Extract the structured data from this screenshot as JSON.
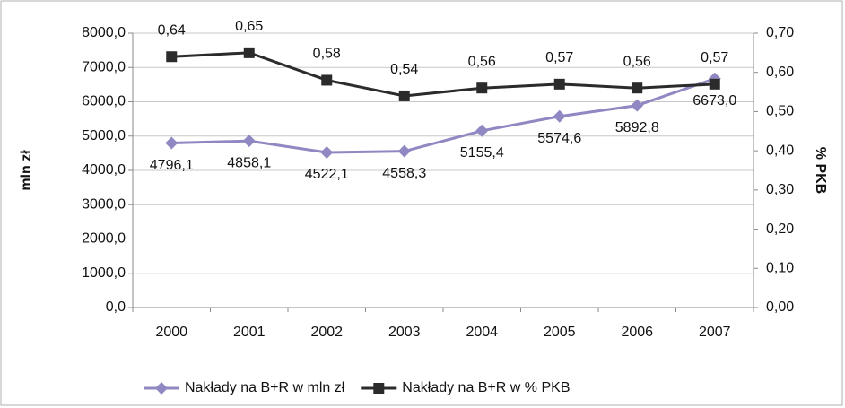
{
  "chart_data": {
    "type": "line",
    "categories": [
      "2000",
      "2001",
      "2002",
      "2003",
      "2004",
      "2005",
      "2006",
      "2007"
    ],
    "y_label": "mln zł",
    "y2_label": "% PKB",
    "ylim": [
      0,
      8000
    ],
    "yticks": [
      {
        "value": 0,
        "label": "0,0"
      },
      {
        "value": 1000,
        "label": "1000,0"
      },
      {
        "value": 2000,
        "label": "2000,0"
      },
      {
        "value": 3000,
        "label": "3000,0"
      },
      {
        "value": 4000,
        "label": "4000,0"
      },
      {
        "value": 5000,
        "label": "5000,0"
      },
      {
        "value": 6000,
        "label": "6000,0"
      },
      {
        "value": 7000,
        "label": "7000,0"
      },
      {
        "value": 8000,
        "label": "8000,0"
      }
    ],
    "y2lim": [
      0,
      0.7
    ],
    "y2ticks": [
      {
        "value": 0,
        "label": "0,00"
      },
      {
        "value": 0.1,
        "label": "0,10"
      },
      {
        "value": 0.2,
        "label": "0,20"
      },
      {
        "value": 0.3,
        "label": "0,30"
      },
      {
        "value": 0.4,
        "label": "0,40"
      },
      {
        "value": 0.5,
        "label": "0,50"
      },
      {
        "value": 0.6,
        "label": "0,60"
      },
      {
        "value": 0.7,
        "label": "0,70"
      }
    ],
    "grid": true,
    "legend": "bottom",
    "series": [
      {
        "name": "Nakłady na B+R w mln zł",
        "color": "#8f88c2",
        "marker": "diamond",
        "axis": "y",
        "values": [
          4796.1,
          4858.1,
          4522.1,
          4558.3,
          5155.4,
          5574.6,
          5892.8,
          6673.0
        ],
        "value_labels": [
          "4796,1",
          "4858,1",
          "4522,1",
          "4558,3",
          "5155,4",
          "5574,6",
          "5892,8",
          "6673,0"
        ]
      },
      {
        "name": "Nakłady na B+R w % PKB",
        "color": "#2b2b2b",
        "marker": "square",
        "axis": "y2",
        "values": [
          0.64,
          0.65,
          0.58,
          0.54,
          0.56,
          0.57,
          0.56,
          0.57
        ],
        "value_labels": [
          "0,64",
          "0,65",
          "0,58",
          "0,54",
          "0,56",
          "0,57",
          "0,56",
          "0,57"
        ]
      }
    ]
  }
}
